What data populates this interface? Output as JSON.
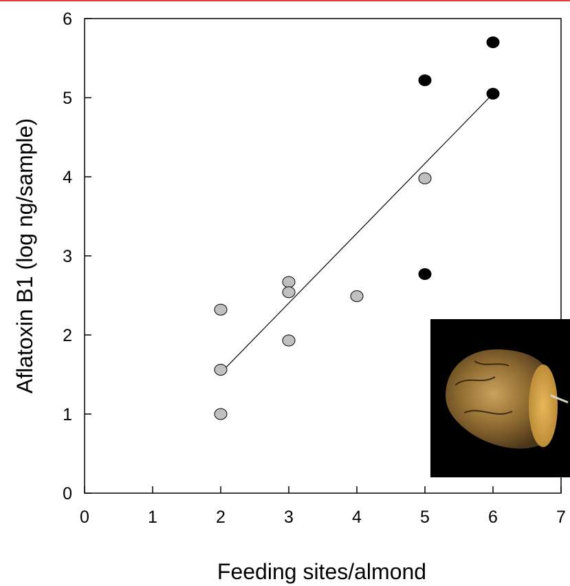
{
  "chart_data": {
    "type": "scatter",
    "title": "",
    "xlabel": "Feeding sites/almond",
    "ylabel": "Aflatoxin B1  (log ng/sample)",
    "xlim": [
      0,
      7
    ],
    "ylim": [
      0,
      6
    ],
    "xticks": [
      0,
      1,
      2,
      3,
      4,
      5,
      6,
      7
    ],
    "yticks": [
      0,
      1,
      2,
      3,
      4,
      5,
      6
    ],
    "grid": false,
    "series": [
      {
        "color": "#c0c0c0",
        "points": [
          {
            "x": 2,
            "y": 2.32
          },
          {
            "x": 2,
            "y": 1.56
          },
          {
            "x": 2,
            "y": 1.0
          },
          {
            "x": 3,
            "y": 2.67
          },
          {
            "x": 3,
            "y": 2.54
          },
          {
            "x": 3,
            "y": 1.93
          },
          {
            "x": 4,
            "y": 2.49
          },
          {
            "x": 5,
            "y": 3.98
          }
        ]
      },
      {
        "color": "#000000",
        "points": [
          {
            "x": 5,
            "y": 5.22
          },
          {
            "x": 5,
            "y": 2.77
          },
          {
            "x": 6,
            "y": 5.7
          },
          {
            "x": 6,
            "y": 5.05
          }
        ]
      }
    ],
    "trendline": {
      "x": [
        2,
        6
      ],
      "y": [
        1.52,
        5.05
      ]
    },
    "inset_image": "almond-photo"
  }
}
